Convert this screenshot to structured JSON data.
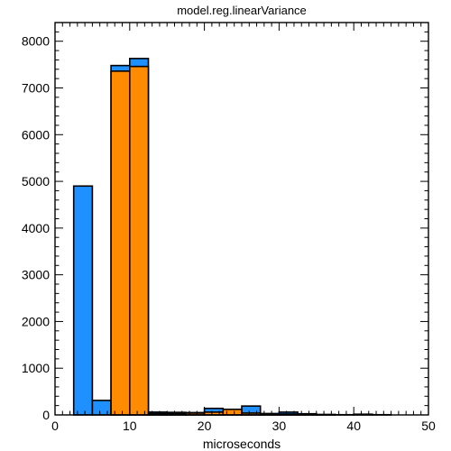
{
  "chart_data": {
    "type": "bar",
    "title": "model.reg.linearVariance",
    "xlabel": "microseconds",
    "ylabel": "",
    "xlim": [
      0,
      50
    ],
    "ylim": [
      0,
      8400
    ],
    "xticks": [
      0,
      10,
      20,
      30,
      40,
      50
    ],
    "yticks": [
      0,
      1000,
      2000,
      3000,
      4000,
      5000,
      6000,
      7000,
      8000
    ],
    "bin_width": 2.5,
    "series": [
      {
        "color": "#1e90ff",
        "bins": [
          {
            "x0": 2.5,
            "value": 4900
          },
          {
            "x0": 5.0,
            "value": 310
          },
          {
            "x0": 7.5,
            "value": 7480
          },
          {
            "x0": 10.0,
            "value": 7630
          },
          {
            "x0": 12.5,
            "value": 60
          },
          {
            "x0": 15.0,
            "value": 55
          },
          {
            "x0": 17.5,
            "value": 50
          },
          {
            "x0": 20.0,
            "value": 140
          },
          {
            "x0": 22.5,
            "value": 110
          },
          {
            "x0": 25.0,
            "value": 190
          },
          {
            "x0": 27.5,
            "value": 30
          },
          {
            "x0": 30.0,
            "value": 60
          },
          {
            "x0": 32.5,
            "value": 25
          },
          {
            "x0": 35.0,
            "value": 10
          },
          {
            "x0": 37.5,
            "value": 5
          },
          {
            "x0": 40.0,
            "value": 15
          },
          {
            "x0": 42.5,
            "value": 5
          }
        ]
      },
      {
        "color": "#ff8c00",
        "bins": [
          {
            "x0": 7.5,
            "value": 7360
          },
          {
            "x0": 10.0,
            "value": 7460
          },
          {
            "x0": 12.5,
            "value": 30
          },
          {
            "x0": 15.0,
            "value": 30
          },
          {
            "x0": 17.5,
            "value": 40
          },
          {
            "x0": 20.0,
            "value": 60
          },
          {
            "x0": 22.5,
            "value": 120
          },
          {
            "x0": 25.0,
            "value": 40
          },
          {
            "x0": 27.5,
            "value": 20
          },
          {
            "x0": 30.0,
            "value": 20
          },
          {
            "x0": 32.5,
            "value": 10
          },
          {
            "x0": 35.0,
            "value": 5
          }
        ]
      }
    ],
    "grid": false,
    "legend": "none"
  }
}
